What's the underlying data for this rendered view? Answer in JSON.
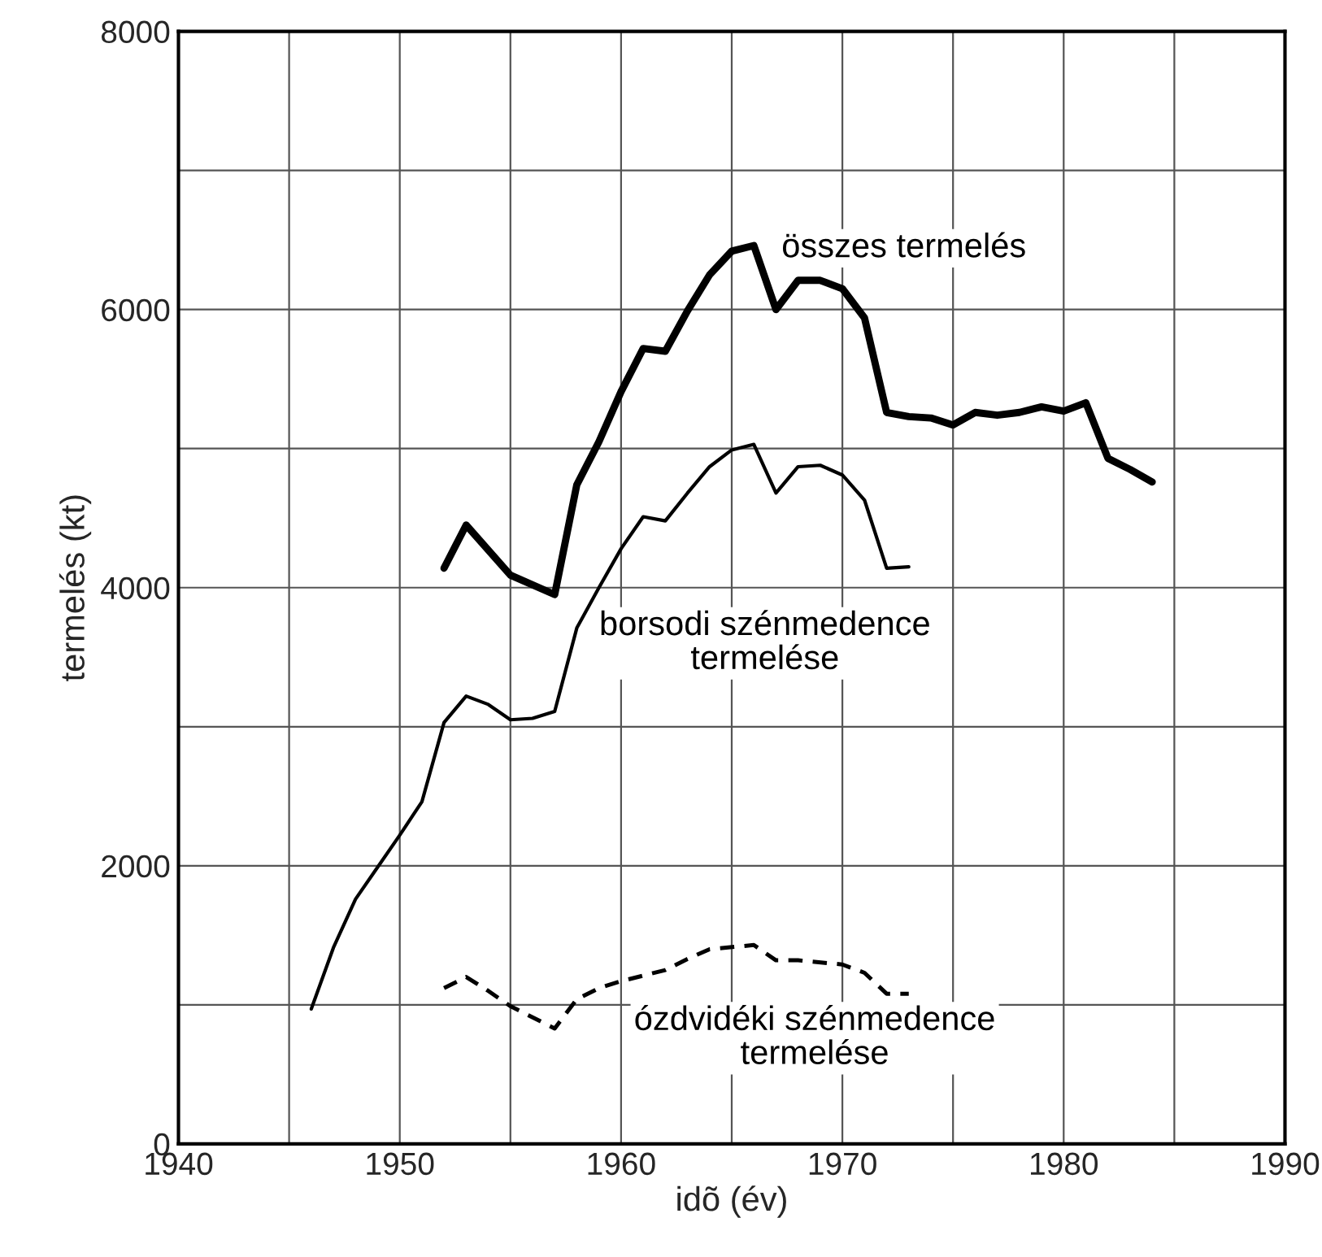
{
  "chart_data": {
    "type": "line",
    "xlabel": "idõ (év)",
    "ylabel": "termelés (kt)",
    "xlim": [
      1940,
      1990
    ],
    "ylim": [
      0,
      8000
    ],
    "xticks": [
      1940,
      {
        "value": 1945,
        "label": null
      },
      1950,
      {
        "value": 1955,
        "label": null
      },
      1960,
      {
        "value": 1965,
        "label": null
      },
      1970,
      {
        "value": 1975,
        "label": null
      },
      1980,
      {
        "value": 1985,
        "label": null
      },
      1990
    ],
    "yticks": [
      0,
      {
        "value": 1000,
        "label": null
      },
      2000,
      {
        "value": 3000,
        "label": null
      },
      4000,
      {
        "value": 5000,
        "label": null
      },
      6000,
      {
        "value": 7000,
        "label": null
      },
      8000
    ],
    "grid": true,
    "legend": false,
    "marker": "none",
    "series": [
      {
        "name": "összes termelés",
        "color": "#000000",
        "line_style": "solid",
        "x": [
          1952,
          1953,
          1955,
          1957,
          1958,
          1959,
          1960,
          1961,
          1962,
          1963,
          1964,
          1965,
          1966,
          1967,
          1968,
          1969,
          1970,
          1971,
          1972,
          1973,
          1974,
          1975,
          1976,
          1977,
          1978,
          1979,
          1980,
          1981,
          1982,
          1983,
          1984
        ],
        "values": [
          4140,
          4450,
          4090,
          3950,
          4740,
          5050,
          5410,
          5720,
          5700,
          5990,
          6250,
          6420,
          6460,
          6000,
          6210,
          6210,
          6150,
          5940,
          5260,
          5230,
          5220,
          5170,
          5260,
          5240,
          5260,
          5300,
          5270,
          5330,
          4930,
          4850,
          4760
        ]
      },
      {
        "name": "borsodi szénmedence\ntermelése",
        "color": "#000000",
        "line_style": "solid",
        "x": [
          1946,
          1947,
          1948,
          1949,
          1950,
          1951,
          1952,
          1953,
          1954,
          1955,
          1956,
          1957,
          1958,
          1959,
          1960,
          1961,
          1962,
          1963,
          1964,
          1965,
          1966,
          1967,
          1968,
          1969,
          1970,
          1971,
          1972,
          1973
        ],
        "values": [
          970,
          1410,
          1760,
          1990,
          2220,
          2460,
          3030,
          3220,
          3160,
          3050,
          3060,
          3110,
          3710,
          4000,
          4280,
          4510,
          4480,
          4680,
          4870,
          4990,
          5030,
          4680,
          4870,
          4880,
          4810,
          4630,
          4140,
          4150
        ]
      },
      {
        "name": "ózdvidéki szénmedence\ntermelése",
        "color": "#000000",
        "line_style": "dashed",
        "x": [
          1952,
          1953,
          1954,
          1955,
          1957,
          1958,
          1959,
          1960,
          1962,
          1963,
          1964,
          1966,
          1967,
          1968,
          1970,
          1971,
          1972,
          1973
        ],
        "values": [
          1120,
          1200,
          1100,
          990,
          830,
          1040,
          1120,
          1170,
          1250,
          1330,
          1400,
          1430,
          1320,
          1320,
          1290,
          1230,
          1080,
          1080
        ]
      }
    ]
  }
}
